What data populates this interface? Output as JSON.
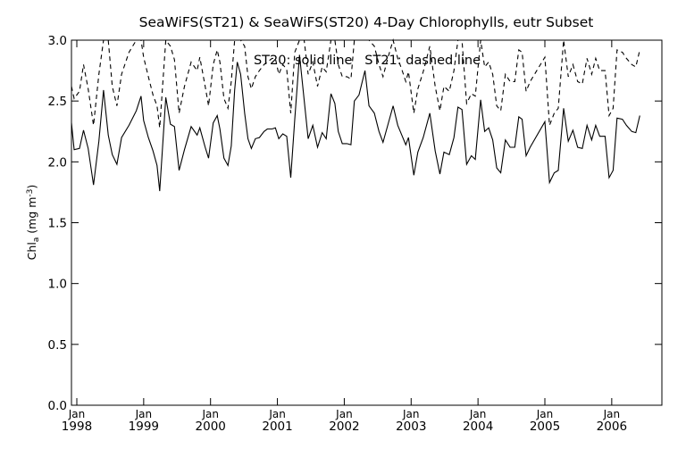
{
  "chart_data": {
    "type": "line",
    "title": "SeaWiFS(ST21) & SeaWiFS(ST20) 4-Day Chlorophylls, eutr Subset",
    "annotation": "ST20: solid line   ST21: dashed line",
    "ylabel": {
      "base": "Chl",
      "sub": "a",
      "units": " (mg m",
      "sup": "-3",
      "close": ")"
    },
    "ylim": [
      0.0,
      3.0
    ],
    "yticks": [
      "0.0",
      "0.5",
      "1.0",
      "1.5",
      "2.0",
      "2.5",
      "3.0"
    ],
    "xlim": [
      1997.92,
      2006.75
    ],
    "xticks": [
      {
        "month": "Jan",
        "year": "1998"
      },
      {
        "month": "Jan",
        "year": "1999"
      },
      {
        "month": "Jan",
        "year": "2000"
      },
      {
        "month": "Jan",
        "year": "2001"
      },
      {
        "month": "Jan",
        "year": "2002"
      },
      {
        "month": "Jan",
        "year": "2003"
      },
      {
        "month": "Jan",
        "year": "2004"
      },
      {
        "month": "Jan",
        "year": "2005"
      },
      {
        "month": "Jan",
        "year": "2006"
      }
    ],
    "series": [
      {
        "name": "ST20",
        "style": "solid",
        "color": "#000000",
        "points": [
          [
            1997.92,
            2.32
          ],
          [
            1997.96,
            2.1
          ],
          [
            1998.04,
            2.11
          ],
          [
            1998.1,
            2.26
          ],
          [
            1998.17,
            2.11
          ],
          [
            1998.25,
            1.81
          ],
          [
            1998.33,
            2.17
          ],
          [
            1998.4,
            2.59
          ],
          [
            1998.47,
            2.22
          ],
          [
            1998.53,
            2.06
          ],
          [
            1998.6,
            1.98
          ],
          [
            1998.67,
            2.2
          ],
          [
            1998.78,
            2.3
          ],
          [
            1998.89,
            2.42
          ],
          [
            1998.96,
            2.54
          ],
          [
            1999.0,
            2.34
          ],
          [
            1999.07,
            2.2
          ],
          [
            1999.14,
            2.09
          ],
          [
            1999.2,
            1.97
          ],
          [
            1999.24,
            1.76
          ],
          [
            1999.33,
            2.53
          ],
          [
            1999.4,
            2.31
          ],
          [
            1999.46,
            2.29
          ],
          [
            1999.53,
            1.93
          ],
          [
            1999.61,
            2.1
          ],
          [
            1999.71,
            2.29
          ],
          [
            1999.8,
            2.22
          ],
          [
            1999.84,
            2.28
          ],
          [
            1999.92,
            2.12
          ],
          [
            1999.97,
            2.03
          ],
          [
            2000.04,
            2.32
          ],
          [
            2000.1,
            2.38
          ],
          [
            2000.14,
            2.27
          ],
          [
            2000.2,
            2.03
          ],
          [
            2000.26,
            1.97
          ],
          [
            2000.31,
            2.13
          ],
          [
            2000.36,
            2.59
          ],
          [
            2000.4,
            2.82
          ],
          [
            2000.45,
            2.72
          ],
          [
            2000.51,
            2.4
          ],
          [
            2000.56,
            2.19
          ],
          [
            2000.61,
            2.11
          ],
          [
            2000.67,
            2.19
          ],
          [
            2000.73,
            2.2
          ],
          [
            2000.8,
            2.25
          ],
          [
            2000.85,
            2.27
          ],
          [
            2000.92,
            2.27
          ],
          [
            2000.97,
            2.28
          ],
          [
            2001.02,
            2.19
          ],
          [
            2001.08,
            2.23
          ],
          [
            2001.14,
            2.21
          ],
          [
            2001.2,
            1.87
          ],
          [
            2001.26,
            2.35
          ],
          [
            2001.33,
            2.88
          ],
          [
            2001.4,
            2.51
          ],
          [
            2001.46,
            2.19
          ],
          [
            2001.53,
            2.3
          ],
          [
            2001.6,
            2.12
          ],
          [
            2001.67,
            2.24
          ],
          [
            2001.73,
            2.19
          ],
          [
            2001.8,
            2.56
          ],
          [
            2001.86,
            2.48
          ],
          [
            2001.91,
            2.25
          ],
          [
            2001.97,
            2.15
          ],
          [
            2002.04,
            2.15
          ],
          [
            2002.1,
            2.14
          ],
          [
            2002.15,
            2.5
          ],
          [
            2002.22,
            2.55
          ],
          [
            2002.31,
            2.75
          ],
          [
            2002.37,
            2.46
          ],
          [
            2002.45,
            2.4
          ],
          [
            2002.52,
            2.25
          ],
          [
            2002.58,
            2.16
          ],
          [
            2002.65,
            2.3
          ],
          [
            2002.73,
            2.46
          ],
          [
            2002.8,
            2.3
          ],
          [
            2002.86,
            2.22
          ],
          [
            2002.92,
            2.14
          ],
          [
            2002.96,
            2.2
          ],
          [
            2003.04,
            1.89
          ],
          [
            2003.1,
            2.08
          ],
          [
            2003.18,
            2.2
          ],
          [
            2003.28,
            2.4
          ],
          [
            2003.36,
            2.09
          ],
          [
            2003.43,
            1.9
          ],
          [
            2003.49,
            2.08
          ],
          [
            2003.57,
            2.06
          ],
          [
            2003.64,
            2.2
          ],
          [
            2003.7,
            2.45
          ],
          [
            2003.76,
            2.43
          ],
          [
            2003.83,
            1.98
          ],
          [
            2003.9,
            2.05
          ],
          [
            2003.96,
            2.02
          ],
          [
            2004.04,
            2.51
          ],
          [
            2004.1,
            2.25
          ],
          [
            2004.16,
            2.28
          ],
          [
            2004.22,
            2.18
          ],
          [
            2004.28,
            1.95
          ],
          [
            2004.34,
            1.91
          ],
          [
            2004.41,
            2.18
          ],
          [
            2004.48,
            2.12
          ],
          [
            2004.55,
            2.12
          ],
          [
            2004.61,
            2.37
          ],
          [
            2004.66,
            2.35
          ],
          [
            2004.72,
            2.05
          ],
          [
            2004.78,
            2.12
          ],
          [
            2005.0,
            2.33
          ],
          [
            2005.07,
            1.83
          ],
          [
            2005.14,
            1.91
          ],
          [
            2005.2,
            1.93
          ],
          [
            2005.28,
            2.44
          ],
          [
            2005.35,
            2.17
          ],
          [
            2005.42,
            2.26
          ],
          [
            2005.49,
            2.12
          ],
          [
            2005.56,
            2.11
          ],
          [
            2005.63,
            2.3
          ],
          [
            2005.7,
            2.18
          ],
          [
            2005.76,
            2.3
          ],
          [
            2005.82,
            2.21
          ],
          [
            2005.9,
            2.21
          ],
          [
            2005.96,
            1.87
          ],
          [
            2006.02,
            1.93
          ],
          [
            2006.08,
            2.36
          ],
          [
            2006.16,
            2.35
          ],
          [
            2006.22,
            2.3
          ],
          [
            2006.3,
            2.25
          ],
          [
            2006.36,
            2.24
          ],
          [
            2006.42,
            2.38
          ]
        ]
      },
      {
        "name": "ST21",
        "style": "dashed",
        "color": "#000000",
        "points": [
          [
            1997.92,
            2.62
          ],
          [
            1997.96,
            2.52
          ],
          [
            1998.04,
            2.58
          ],
          [
            1998.1,
            2.8
          ],
          [
            1998.17,
            2.6
          ],
          [
            1998.25,
            2.3
          ],
          [
            1998.33,
            2.72
          ],
          [
            1998.4,
            3.0
          ],
          [
            1998.47,
            3.0
          ],
          [
            1998.53,
            2.62
          ],
          [
            1998.6,
            2.46
          ],
          [
            1998.67,
            2.72
          ],
          [
            1998.78,
            2.9
          ],
          [
            1998.89,
            3.0
          ],
          [
            1998.96,
            3.0
          ],
          [
            1999.0,
            2.86
          ],
          [
            1999.07,
            2.7
          ],
          [
            1999.14,
            2.55
          ],
          [
            1999.2,
            2.46
          ],
          [
            1999.24,
            2.28
          ],
          [
            1999.33,
            3.0
          ],
          [
            1999.4,
            2.95
          ],
          [
            1999.46,
            2.84
          ],
          [
            1999.53,
            2.4
          ],
          [
            1999.61,
            2.62
          ],
          [
            1999.71,
            2.82
          ],
          [
            1999.8,
            2.75
          ],
          [
            1999.84,
            2.86
          ],
          [
            1999.92,
            2.62
          ],
          [
            1999.97,
            2.46
          ],
          [
            2000.04,
            2.8
          ],
          [
            2000.1,
            2.92
          ],
          [
            2000.14,
            2.82
          ],
          [
            2000.2,
            2.52
          ],
          [
            2000.26,
            2.44
          ],
          [
            2000.31,
            2.66
          ],
          [
            2000.36,
            3.0
          ],
          [
            2000.4,
            3.0
          ],
          [
            2000.45,
            3.0
          ],
          [
            2000.51,
            2.95
          ],
          [
            2000.56,
            2.7
          ],
          [
            2000.61,
            2.6
          ],
          [
            2000.67,
            2.7
          ],
          [
            2000.73,
            2.75
          ],
          [
            2000.8,
            2.8
          ],
          [
            2000.85,
            2.82
          ],
          [
            2000.92,
            2.85
          ],
          [
            2000.97,
            2.85
          ],
          [
            2001.02,
            2.72
          ],
          [
            2001.08,
            2.8
          ],
          [
            2001.14,
            2.76
          ],
          [
            2001.2,
            2.4
          ],
          [
            2001.26,
            2.9
          ],
          [
            2001.33,
            3.0
          ],
          [
            2001.4,
            3.0
          ],
          [
            2001.46,
            2.72
          ],
          [
            2001.53,
            2.82
          ],
          [
            2001.6,
            2.62
          ],
          [
            2001.67,
            2.78
          ],
          [
            2001.73,
            2.74
          ],
          [
            2001.8,
            3.0
          ],
          [
            2001.86,
            3.0
          ],
          [
            2001.91,
            2.8
          ],
          [
            2001.97,
            2.7
          ],
          [
            2002.04,
            2.7
          ],
          [
            2002.1,
            2.68
          ],
          [
            2002.15,
            3.0
          ],
          [
            2002.22,
            3.0
          ],
          [
            2002.31,
            3.0
          ],
          [
            2002.37,
            3.0
          ],
          [
            2002.45,
            2.95
          ],
          [
            2002.52,
            2.8
          ],
          [
            2002.58,
            2.7
          ],
          [
            2002.65,
            2.85
          ],
          [
            2002.73,
            3.0
          ],
          [
            2002.8,
            2.85
          ],
          [
            2002.86,
            2.76
          ],
          [
            2002.92,
            2.66
          ],
          [
            2002.96,
            2.74
          ],
          [
            2003.04,
            2.4
          ],
          [
            2003.1,
            2.6
          ],
          [
            2003.18,
            2.74
          ],
          [
            2003.28,
            2.95
          ],
          [
            2003.36,
            2.62
          ],
          [
            2003.43,
            2.42
          ],
          [
            2003.49,
            2.62
          ],
          [
            2003.57,
            2.58
          ],
          [
            2003.64,
            2.75
          ],
          [
            2003.7,
            3.0
          ],
          [
            2003.76,
            3.0
          ],
          [
            2003.83,
            2.48
          ],
          [
            2003.9,
            2.56
          ],
          [
            2003.96,
            2.54
          ],
          [
            2004.04,
            3.0
          ],
          [
            2004.1,
            2.78
          ],
          [
            2004.16,
            2.82
          ],
          [
            2004.22,
            2.72
          ],
          [
            2004.28,
            2.46
          ],
          [
            2004.34,
            2.42
          ],
          [
            2004.41,
            2.72
          ],
          [
            2004.48,
            2.66
          ],
          [
            2004.55,
            2.66
          ],
          [
            2004.61,
            2.92
          ],
          [
            2004.66,
            2.9
          ],
          [
            2004.72,
            2.58
          ],
          [
            2004.78,
            2.66
          ],
          [
            2005.0,
            2.86
          ],
          [
            2005.07,
            2.3
          ],
          [
            2005.14,
            2.4
          ],
          [
            2005.2,
            2.44
          ],
          [
            2005.28,
            3.0
          ],
          [
            2005.35,
            2.7
          ],
          [
            2005.42,
            2.8
          ],
          [
            2005.49,
            2.66
          ],
          [
            2005.56,
            2.64
          ],
          [
            2005.63,
            2.85
          ],
          [
            2005.7,
            2.72
          ],
          [
            2005.76,
            2.85
          ],
          [
            2005.82,
            2.75
          ],
          [
            2005.9,
            2.75
          ],
          [
            2005.96,
            2.38
          ],
          [
            2006.02,
            2.44
          ],
          [
            2006.08,
            2.92
          ],
          [
            2006.16,
            2.9
          ],
          [
            2006.22,
            2.85
          ],
          [
            2006.3,
            2.8
          ],
          [
            2006.36,
            2.78
          ],
          [
            2006.42,
            2.92
          ]
        ]
      }
    ]
  }
}
